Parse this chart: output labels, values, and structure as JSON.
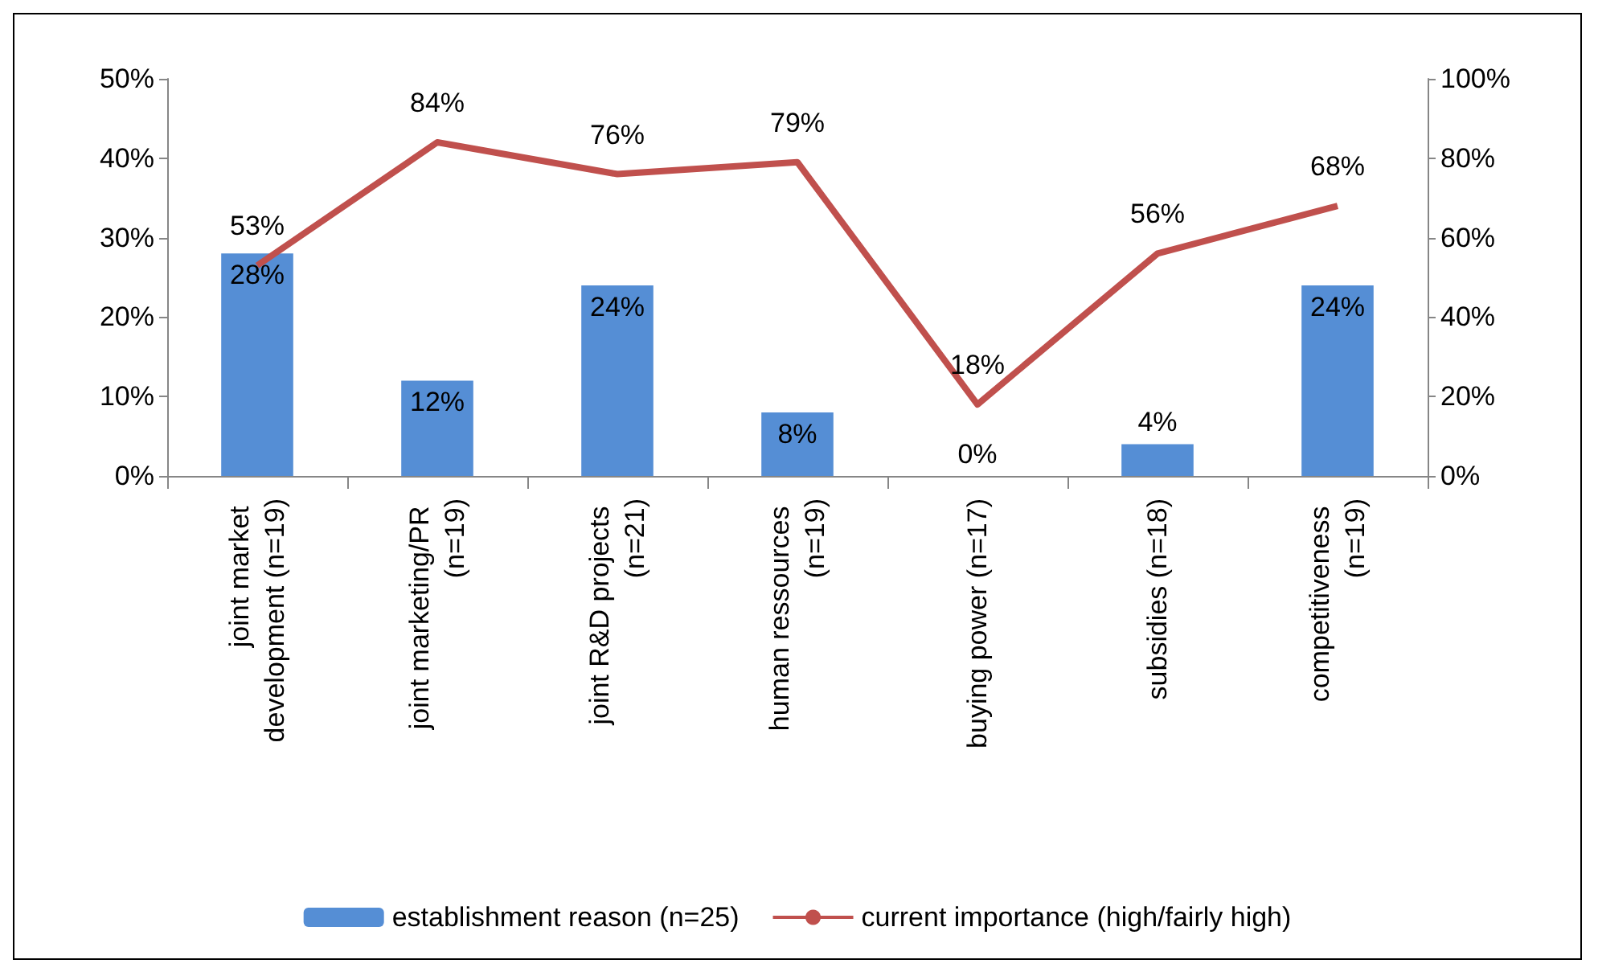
{
  "chart_data": {
    "type": "bar",
    "categories": [
      "joint market development (n=19)",
      "joint marketing/PR (n=19)",
      "joint R&D projects (n=21)",
      "human ressources (n=19)",
      "buying power (n=17)",
      "subsidies (n=18)",
      "competitiveness (n=19)"
    ],
    "series": [
      {
        "name": "establishment reason (n=25)",
        "color": "#558ed5",
        "values": [
          28,
          12,
          24,
          8,
          0,
          4,
          24
        ],
        "value_labels": [
          "28%",
          "12%",
          "24%",
          "8%",
          "0%",
          "4%",
          "24%"
        ]
      },
      {
        "name": "current importance (high/fairly high)",
        "type": "line",
        "axis": "y2",
        "color": "#c0504d",
        "values": [
          53,
          84,
          76,
          79,
          18,
          56,
          68
        ],
        "value_labels": [
          "53%",
          "84%",
          "76%",
          "79%",
          "18%",
          "56%",
          "68%"
        ]
      }
    ],
    "ylim": [
      0,
      50
    ],
    "yticks": [
      {
        "value": 0,
        "label": "0%"
      },
      {
        "value": 10,
        "label": "10%"
      },
      {
        "value": 20,
        "label": "20%"
      },
      {
        "value": 30,
        "label": "30%"
      },
      {
        "value": 40,
        "label": "40%"
      },
      {
        "value": 50,
        "label": "50%"
      }
    ],
    "y2lim": [
      0,
      100
    ],
    "y2ticks": [
      {
        "value": 0,
        "label": "0%"
      },
      {
        "value": 20,
        "label": "20%"
      },
      {
        "value": 40,
        "label": "40%"
      },
      {
        "value": 60,
        "label": "60%"
      },
      {
        "value": 80,
        "label": "80%"
      },
      {
        "value": 100,
        "label": "100%"
      }
    ],
    "grid": false,
    "legend": "bottom",
    "marker": "none",
    "line_style": "solid"
  }
}
